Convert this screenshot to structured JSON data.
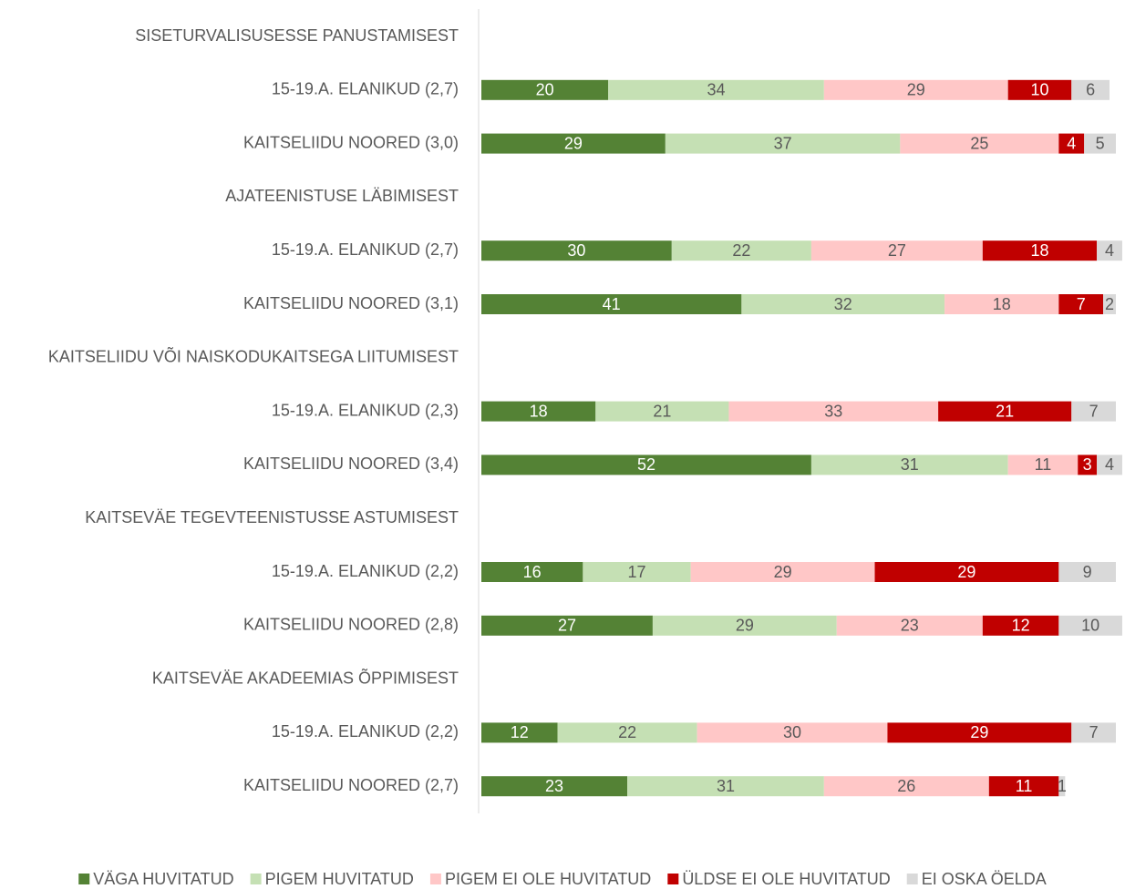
{
  "chart_data": {
    "type": "stacked_bar_horizontal",
    "categories": [
      "SISETURVALISUSESSE PANUSTAMISEST",
      "15-19.A. ELANIKUD (2,7)",
      "KAITSELIIDU NOORED (3,0)",
      "AJATEENISTUSE LÄBIMISEST",
      "15-19.A. ELANIKUD (2,7)",
      "KAITSELIIDU NOORED (3,1)",
      "KAITSELIIDU VÕI NAISKODUKAITSEGA LIITUMISEST",
      "15-19.A. ELANIKUD (2,3)",
      "KAITSELIIDU NOORED (3,4)",
      "KAITSEVÄE TEGEVTEENISTUSSE ASTUMISEST",
      "15-19.A. ELANIKUD (2,2)",
      "KAITSELIIDU NOORED (2,8)",
      "KAITSEVÄE AKADEEMIAS ÕPPIMISEST",
      "15-19.A. ELANIKUD (2,2)",
      "KAITSELIIDU NOORED (2,7)"
    ],
    "series": [
      {
        "name": "VÄGA HUVITATUD",
        "color": "#548235",
        "values": [
          null,
          20,
          29,
          null,
          30,
          41,
          null,
          18,
          52,
          null,
          16,
          27,
          null,
          12,
          23
        ]
      },
      {
        "name": "PIGEM HUVITATUD",
        "color": "#c5e0b4",
        "values": [
          null,
          34,
          37,
          null,
          22,
          32,
          null,
          21,
          31,
          null,
          17,
          29,
          null,
          22,
          31
        ]
      },
      {
        "name": "PIGEM EI OLE HUVITATUD",
        "color": "#ffc7c7",
        "values": [
          null,
          29,
          25,
          null,
          27,
          18,
          null,
          33,
          11,
          null,
          29,
          23,
          null,
          30,
          26
        ]
      },
      {
        "name": "ÜLDSE EI OLE HUVITATUD",
        "color": "#c00000",
        "values": [
          null,
          10,
          4,
          null,
          18,
          7,
          null,
          21,
          3,
          null,
          29,
          12,
          null,
          29,
          11
        ]
      },
      {
        "name": "EI OSKA ÖELDA",
        "color": "#d9d9d9",
        "values": [
          null,
          6,
          5,
          null,
          4,
          2,
          null,
          7,
          4,
          null,
          9,
          10,
          null,
          7,
          1
        ]
      }
    ],
    "xlim": [
      0,
      100
    ],
    "legend": "bottom"
  }
}
